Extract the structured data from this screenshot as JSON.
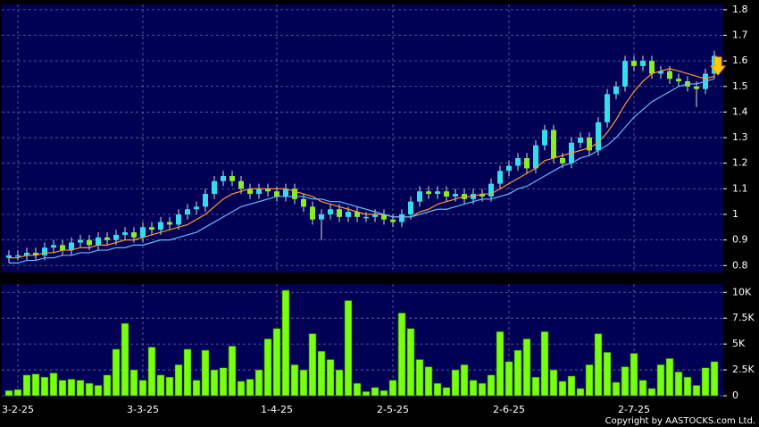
{
  "copyright": "Copyright by AASTOCKS.com Ltd.",
  "chart_data": [
    {
      "type": "candlestick",
      "up_color": "#33ddee",
      "down_color": "#88ee22",
      "open": [
        0.83,
        0.84,
        0.84,
        0.85,
        0.84,
        0.87,
        0.88,
        0.86,
        0.89,
        0.9,
        0.88,
        0.91,
        0.9,
        0.92,
        0.93,
        0.91,
        0.95,
        0.94,
        0.97,
        0.96,
        1.0,
        1.02,
        1.03,
        1.08,
        1.13,
        1.15,
        1.13,
        1.1,
        1.08,
        1.1,
        1.09,
        1.07,
        1.1,
        1.06,
        1.03,
        0.98,
        1.0,
        1.02,
        0.99,
        1.01,
        0.99,
        0.99,
        1.0,
        0.98,
        0.97,
        1.0,
        1.05,
        1.09,
        1.08,
        1.09,
        1.07,
        1.08,
        1.06,
        1.08,
        1.07,
        1.12,
        1.17,
        1.19,
        1.22,
        1.18,
        1.27,
        1.33,
        1.22,
        1.2,
        1.28,
        1.3,
        1.25,
        1.36,
        1.47,
        1.5,
        1.6,
        1.58,
        1.6,
        1.55,
        1.56,
        1.53,
        1.52,
        1.5,
        1.49,
        1.55
      ],
      "high": [
        0.86,
        0.86,
        0.87,
        0.87,
        0.89,
        0.9,
        0.9,
        0.91,
        0.92,
        0.92,
        0.93,
        0.93,
        0.94,
        0.95,
        0.95,
        0.97,
        0.97,
        0.99,
        0.99,
        1.02,
        1.04,
        1.05,
        1.1,
        1.15,
        1.17,
        1.17,
        1.15,
        1.12,
        1.12,
        1.12,
        1.11,
        1.12,
        1.12,
        1.08,
        1.05,
        1.02,
        1.04,
        1.04,
        1.03,
        1.03,
        1.01,
        1.02,
        1.02,
        1.0,
        1.02,
        1.07,
        1.11,
        1.11,
        1.11,
        1.11,
        1.1,
        1.1,
        1.1,
        1.1,
        1.14,
        1.19,
        1.21,
        1.24,
        1.24,
        1.29,
        1.35,
        1.35,
        1.24,
        1.3,
        1.32,
        1.32,
        1.38,
        1.49,
        1.52,
        1.62,
        1.62,
        1.62,
        1.62,
        1.58,
        1.58,
        1.55,
        1.54,
        1.52,
        1.57,
        1.64
      ],
      "low": [
        0.81,
        0.82,
        0.82,
        0.82,
        0.82,
        0.85,
        0.84,
        0.84,
        0.87,
        0.86,
        0.86,
        0.88,
        0.88,
        0.9,
        0.89,
        0.89,
        0.92,
        0.92,
        0.94,
        0.94,
        0.98,
        1.0,
        1.01,
        1.06,
        1.11,
        1.11,
        1.08,
        1.06,
        1.06,
        1.07,
        1.05,
        1.05,
        1.04,
        1.01,
        0.96,
        0.9,
        0.98,
        0.97,
        0.97,
        0.97,
        0.97,
        0.97,
        0.96,
        0.95,
        0.95,
        0.98,
        1.03,
        1.06,
        1.06,
        1.05,
        1.05,
        1.04,
        1.04,
        1.05,
        1.05,
        1.1,
        1.15,
        1.17,
        1.16,
        1.16,
        1.25,
        1.2,
        1.18,
        1.18,
        1.26,
        1.23,
        1.23,
        1.34,
        1.45,
        1.48,
        1.56,
        1.56,
        1.53,
        1.53,
        1.51,
        1.5,
        1.48,
        1.42,
        1.47,
        1.53
      ],
      "close": [
        0.84,
        0.84,
        0.85,
        0.84,
        0.87,
        0.88,
        0.86,
        0.89,
        0.9,
        0.88,
        0.91,
        0.9,
        0.92,
        0.93,
        0.91,
        0.95,
        0.94,
        0.97,
        0.96,
        1.0,
        1.02,
        1.03,
        1.08,
        1.13,
        1.15,
        1.13,
        1.1,
        1.08,
        1.1,
        1.09,
        1.07,
        1.1,
        1.06,
        1.03,
        0.98,
        1.0,
        1.02,
        0.99,
        1.01,
        0.99,
        0.99,
        1.0,
        0.98,
        0.97,
        1.0,
        1.05,
        1.09,
        1.08,
        1.09,
        1.07,
        1.08,
        1.06,
        1.08,
        1.07,
        1.12,
        1.17,
        1.19,
        1.22,
        1.18,
        1.27,
        1.33,
        1.22,
        1.2,
        1.28,
        1.3,
        1.25,
        1.36,
        1.47,
        1.5,
        1.6,
        1.58,
        1.6,
        1.55,
        1.56,
        1.53,
        1.52,
        1.5,
        1.49,
        1.55,
        1.62
      ],
      "series": [
        {
          "color": "#ff9933",
          "values": [
            0.83,
            0.83,
            0.84,
            0.84,
            0.85,
            0.85,
            0.86,
            0.86,
            0.87,
            0.87,
            0.88,
            0.88,
            0.89,
            0.9,
            0.9,
            0.91,
            0.92,
            0.93,
            0.94,
            0.95,
            0.96,
            0.98,
            1.0,
            1.03,
            1.06,
            1.08,
            1.09,
            1.1,
            1.1,
            1.1,
            1.1,
            1.1,
            1.09,
            1.08,
            1.07,
            1.05,
            1.04,
            1.03,
            1.02,
            1.01,
            1.0,
            1.0,
            1.0,
            0.99,
            0.99,
            0.99,
            1.01,
            1.02,
            1.04,
            1.05,
            1.06,
            1.07,
            1.07,
            1.08,
            1.08,
            1.1,
            1.12,
            1.14,
            1.16,
            1.18,
            1.21,
            1.22,
            1.23,
            1.24,
            1.25,
            1.26,
            1.28,
            1.32,
            1.37,
            1.43,
            1.48,
            1.52,
            1.55,
            1.56,
            1.57,
            1.56,
            1.55,
            1.54,
            1.53,
            1.54
          ]
        },
        {
          "color": "#66bbff",
          "values": [
            0.81,
            0.81,
            0.82,
            0.82,
            0.83,
            0.83,
            0.84,
            0.84,
            0.85,
            0.85,
            0.86,
            0.86,
            0.87,
            0.87,
            0.88,
            0.88,
            0.89,
            0.9,
            0.9,
            0.91,
            0.92,
            0.93,
            0.95,
            0.97,
            0.99,
            1.01,
            1.03,
            1.04,
            1.05,
            1.06,
            1.07,
            1.07,
            1.07,
            1.07,
            1.06,
            1.06,
            1.05,
            1.05,
            1.04,
            1.03,
            1.02,
            1.01,
            1.0,
            0.99,
            0.99,
            0.99,
            1.0,
            1.01,
            1.02,
            1.02,
            1.03,
            1.04,
            1.05,
            1.06,
            1.06,
            1.07,
            1.08,
            1.1,
            1.11,
            1.13,
            1.15,
            1.17,
            1.19,
            1.2,
            1.22,
            1.23,
            1.25,
            1.27,
            1.3,
            1.34,
            1.38,
            1.41,
            1.44,
            1.46,
            1.48,
            1.5,
            1.51,
            1.51,
            1.52,
            1.53
          ]
        }
      ],
      "ylim": [
        0.78,
        1.81
      ],
      "yticks": [
        0.8,
        0.9,
        1,
        1.1,
        1.2,
        1.3,
        1.4,
        1.5,
        1.6,
        1.7,
        1.8
      ],
      "grid": true
    },
    {
      "type": "bar",
      "color": "#77ff11",
      "categories": [
        null,
        "3-2-25",
        null,
        null,
        null,
        null,
        null,
        null,
        null,
        null,
        null,
        null,
        null,
        null,
        null,
        "3-3-25",
        null,
        null,
        null,
        null,
        null,
        null,
        null,
        null,
        null,
        null,
        null,
        null,
        null,
        null,
        "1-4-25",
        null,
        null,
        null,
        null,
        null,
        null,
        null,
        null,
        null,
        null,
        null,
        null,
        "2-5-25",
        null,
        null,
        null,
        null,
        null,
        null,
        null,
        null,
        null,
        null,
        null,
        null,
        "2-6-25",
        null,
        null,
        null,
        null,
        null,
        null,
        null,
        null,
        null,
        null,
        null,
        null,
        null,
        "2-7-25",
        null,
        null,
        null,
        null,
        null,
        null,
        null,
        null,
        null
      ],
      "values": [
        500,
        600,
        2000,
        2100,
        1800,
        2200,
        1500,
        1600,
        1500,
        1200,
        1000,
        2000,
        4500,
        7000,
        2500,
        1500,
        4700,
        2000,
        1800,
        3000,
        4500,
        1500,
        4400,
        2500,
        2700,
        4800,
        1400,
        1600,
        2500,
        5500,
        6500,
        10200,
        3000,
        2500,
        6000,
        4300,
        3500,
        2500,
        9200,
        1200,
        400,
        800,
        500,
        1500,
        8000,
        6500,
        3500,
        2800,
        1200,
        800,
        2500,
        3000,
        1500,
        1200,
        2000,
        6200,
        3300,
        4400,
        5500,
        1800,
        6200,
        2500,
        1400,
        1900,
        700,
        3000,
        6000,
        4200,
        1300,
        2800,
        4100,
        1500,
        700,
        3000,
        3600,
        2300,
        1800,
        1000,
        2700,
        3300
      ],
      "ylim": [
        0,
        10800
      ],
      "yticks": [
        0,
        {
          "value": 2500,
          "label": "2.5K"
        },
        {
          "value": 5000,
          "label": "5K"
        },
        {
          "value": 7500,
          "label": "7.5K"
        },
        {
          "value": 10000,
          "label": "10K"
        }
      ],
      "grid": true
    }
  ]
}
